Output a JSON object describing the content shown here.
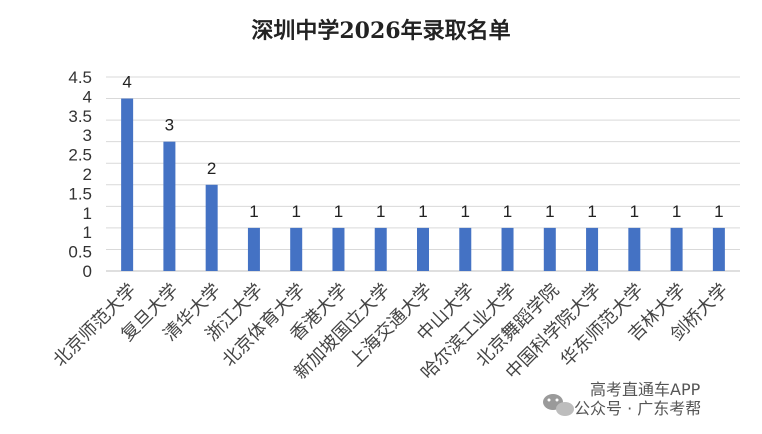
{
  "watermark": {
    "line1": "高考直通车APP",
    "line2": "公众号 · 广东考帮",
    "icon": "wechat-icon"
  },
  "chart_data": {
    "type": "bar",
    "title": "深圳中学2026年录取名单",
    "xlabel": "",
    "ylabel": "",
    "ylim": [
      0,
      4.5
    ],
    "yticks": [
      "0",
      "0.5",
      "1",
      "1",
      "1.5",
      "2",
      "2.5",
      "3",
      "3.5",
      "4",
      "4.5"
    ],
    "grid": true,
    "legend": "none",
    "bar_color": "#4472C4",
    "categories": [
      "北京师范大学",
      "复旦大学",
      "清华大学",
      "浙江大学",
      "北京体育大学",
      "香港大学",
      "新加坡国立大学",
      "上海交通大学",
      "中山大学",
      "哈尔滨工业大学",
      "北京舞蹈学院",
      "中国科学院大学",
      "华东师范大学",
      "吉林大学",
      "剑桥大学"
    ],
    "values": [
      4,
      3,
      2,
      1,
      1,
      1,
      1,
      1,
      1,
      1,
      1,
      1,
      1,
      1,
      1
    ]
  }
}
